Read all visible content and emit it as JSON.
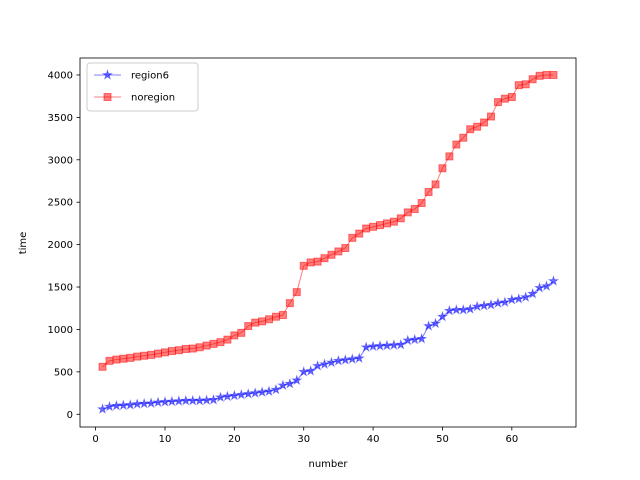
{
  "chart_data": {
    "type": "line",
    "title": "",
    "xlabel": "number",
    "ylabel": "time",
    "xlim": [
      -2.25,
      69.25
    ],
    "ylim": [
      -150,
      4200
    ],
    "xticks": [
      0,
      10,
      20,
      30,
      40,
      50,
      60
    ],
    "yticks": [
      0,
      500,
      1000,
      1500,
      2000,
      2500,
      3000,
      3500,
      4000
    ],
    "grid": false,
    "legend_position": "top-left",
    "x": [
      1,
      2,
      3,
      4,
      5,
      6,
      7,
      8,
      9,
      10,
      11,
      12,
      13,
      14,
      15,
      16,
      17,
      18,
      19,
      20,
      21,
      22,
      23,
      24,
      25,
      26,
      27,
      28,
      29,
      30,
      31,
      32,
      33,
      34,
      35,
      36,
      37,
      38,
      39,
      40,
      41,
      42,
      43,
      44,
      45,
      46,
      47,
      48,
      49,
      50,
      51,
      52,
      53,
      54,
      55,
      56,
      57,
      58,
      59,
      60,
      61,
      62,
      63,
      64,
      65,
      66
    ],
    "series": [
      {
        "name": "region6",
        "color": "#0000ff",
        "marker": "star",
        "values": [
          60,
          90,
          100,
          105,
          110,
          120,
          125,
          130,
          140,
          145,
          150,
          155,
          160,
          160,
          160,
          165,
          170,
          200,
          210,
          220,
          230,
          240,
          250,
          260,
          270,
          290,
          340,
          360,
          400,
          500,
          510,
          570,
          590,
          610,
          630,
          640,
          650,
          660,
          790,
          800,
          805,
          810,
          815,
          820,
          870,
          880,
          890,
          1040,
          1070,
          1150,
          1220,
          1230,
          1230,
          1240,
          1270,
          1280,
          1290,
          1310,
          1320,
          1350,
          1360,
          1380,
          1420,
          1490,
          1510,
          1570
        ]
      },
      {
        "name": "noregion",
        "color": "#ff0000",
        "marker": "square",
        "values": [
          560,
          630,
          645,
          655,
          665,
          680,
          690,
          700,
          715,
          730,
          745,
          755,
          770,
          775,
          790,
          810,
          830,
          850,
          880,
          930,
          960,
          1040,
          1080,
          1095,
          1120,
          1150,
          1170,
          1310,
          1440,
          1750,
          1790,
          1800,
          1840,
          1880,
          1920,
          1960,
          2080,
          2130,
          2190,
          2210,
          2230,
          2250,
          2270,
          2310,
          2380,
          2420,
          2490,
          2620,
          2710,
          2900,
          3040,
          3180,
          3260,
          3360,
          3390,
          3440,
          3510,
          3680,
          3720,
          3740,
          3880,
          3890,
          3950,
          3990,
          4000,
          4000
        ]
      }
    ]
  }
}
